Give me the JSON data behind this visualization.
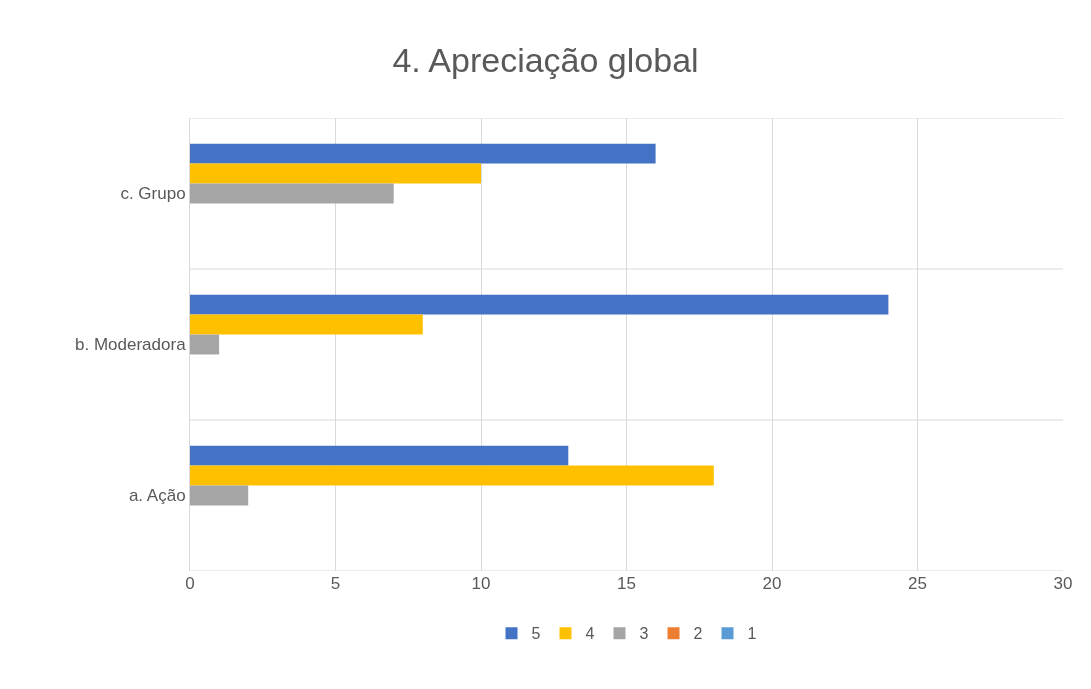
{
  "chart_data": {
    "type": "bar",
    "orientation": "horizontal",
    "title": "4. Apreciação global",
    "categories": [
      "c. Grupo",
      "b. Moderadora",
      "a. Ação"
    ],
    "series": [
      {
        "name": "5",
        "color": "#4472c4",
        "values": [
          16,
          24,
          13
        ]
      },
      {
        "name": "4",
        "color": "#ffc000",
        "values": [
          10,
          8,
          18
        ]
      },
      {
        "name": "3",
        "color": "#a5a5a5",
        "values": [
          7,
          1,
          2
        ]
      },
      {
        "name": "2",
        "color": "#ed7d31",
        "values": [
          0,
          0,
          0
        ]
      },
      {
        "name": "1",
        "color": "#5b9bd5",
        "values": [
          0,
          0,
          0
        ]
      }
    ],
    "xlim": [
      0,
      30
    ],
    "xticks": [
      0,
      5,
      10,
      15,
      20,
      25,
      30
    ],
    "grid": "x",
    "legend": "bottom"
  }
}
